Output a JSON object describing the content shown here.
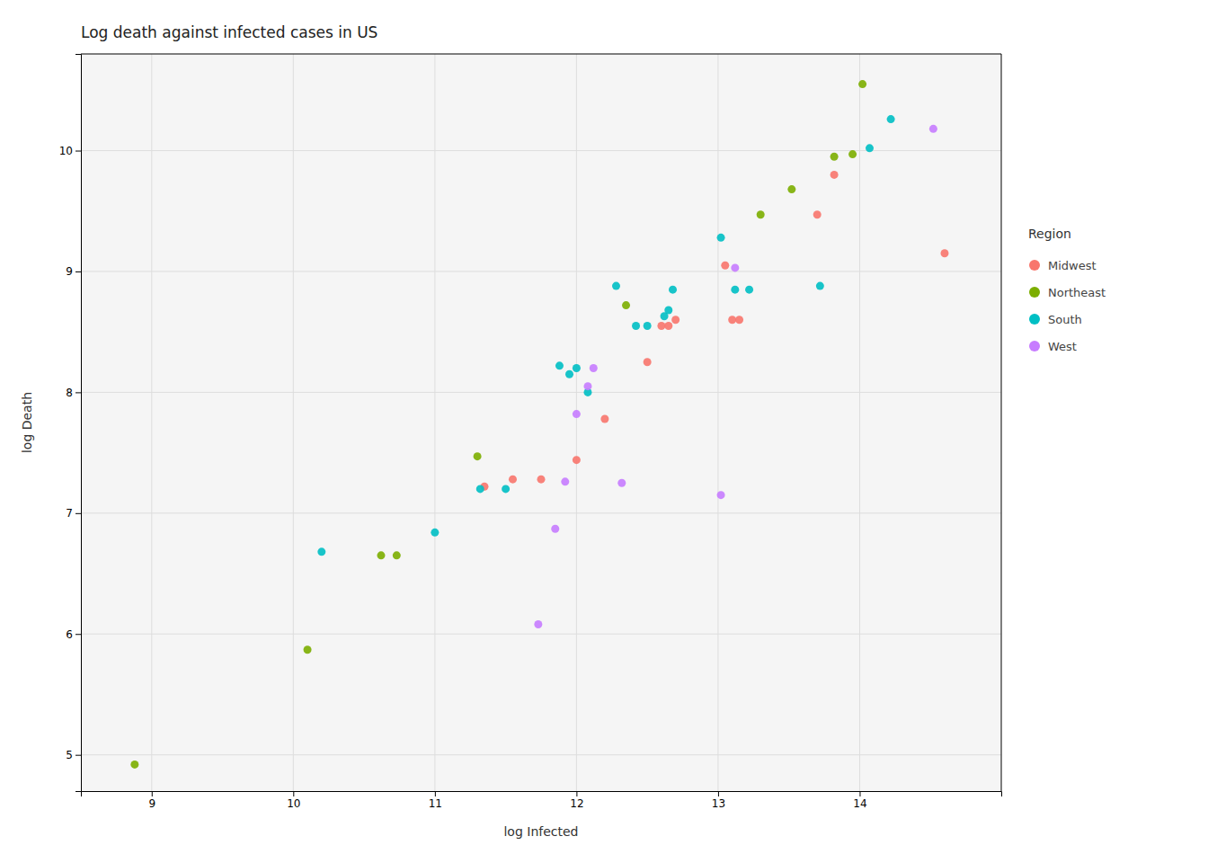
{
  "chart_data": {
    "type": "scatter",
    "title": "Log death against infected cases in US",
    "x_label": "log Infected",
    "y_label": "log Death",
    "legend_title": "Region",
    "series": [
      {
        "name": "Midwest",
        "color": "#F8766D",
        "x": [
          11.35,
          11.55,
          11.75,
          12.0,
          12.2,
          12.5,
          12.6,
          12.65,
          12.7,
          13.05,
          13.1,
          13.15,
          13.7,
          13.82,
          14.6
        ],
        "values": [
          7.22,
          7.28,
          7.28,
          7.44,
          7.78,
          8.25,
          8.55,
          8.55,
          8.6,
          9.05,
          8.6,
          8.6,
          9.47,
          9.8,
          9.15
        ]
      },
      {
        "name": "Northeast",
        "color": "#7CAE00",
        "x": [
          8.88,
          10.1,
          10.62,
          10.73,
          11.3,
          12.35,
          13.3,
          13.52,
          13.82,
          13.95,
          14.02
        ],
        "values": [
          4.92,
          5.87,
          6.65,
          6.65,
          7.47,
          8.72,
          9.47,
          9.68,
          9.95,
          9.97,
          10.55
        ]
      },
      {
        "name": "South",
        "color": "#00BFC4",
        "x": [
          10.2,
          11.0,
          11.32,
          11.5,
          11.88,
          11.95,
          12.0,
          12.08,
          12.28,
          12.42,
          12.5,
          12.62,
          12.65,
          12.68,
          13.02,
          13.12,
          13.22,
          13.72,
          14.07,
          14.22
        ],
        "values": [
          6.68,
          6.84,
          7.2,
          7.2,
          8.22,
          8.15,
          8.2,
          8.0,
          8.88,
          8.55,
          8.55,
          8.63,
          8.68,
          8.85,
          9.28,
          8.85,
          8.85,
          8.88,
          10.02,
          10.26
        ]
      },
      {
        "name": "West",
        "color": "#C77CFF",
        "x": [
          11.73,
          11.85,
          11.92,
          12.0,
          12.08,
          12.12,
          12.32,
          13.02,
          13.12,
          14.52
        ],
        "values": [
          6.08,
          6.87,
          7.26,
          7.82,
          8.05,
          8.2,
          7.25,
          7.15,
          9.03,
          10.18
        ]
      }
    ],
    "xlim": [
      8.5,
      15.0
    ],
    "ylim": [
      4.7,
      10.8
    ],
    "xticks": [
      9,
      10,
      11,
      12,
      13,
      14
    ],
    "yticks": [
      5,
      6,
      7,
      8,
      9,
      10
    ],
    "grid": true,
    "legend": "right"
  }
}
